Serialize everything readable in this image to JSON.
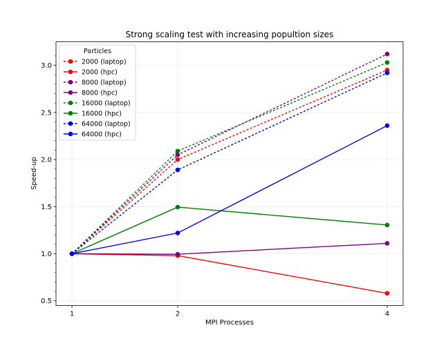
{
  "chart_data": {
    "type": "line",
    "title": "Strong scaling test with increasing popultion sizes",
    "xlabel": "MPI Processes",
    "ylabel": "Speed-up",
    "x": [
      1,
      2,
      4
    ],
    "x_scale": "log2",
    "x_ticks": [
      "1",
      "2",
      "4"
    ],
    "y_ticks": [
      "0.5",
      "1.0",
      "1.5",
      "2.0",
      "2.5",
      "3.0"
    ],
    "ylim": [
      0.45,
      3.25
    ],
    "grid": true,
    "legend_title": "Particles",
    "legend_position": "top-left",
    "series": [
      {
        "name": "2000 (laptop)",
        "values": [
          1.0,
          2.0,
          2.95
        ],
        "color": "#ff0000",
        "style": "dotted"
      },
      {
        "name": "2000 (hpc)",
        "values": [
          1.0,
          0.98,
          0.58
        ],
        "color": "#ff0000",
        "style": "solid"
      },
      {
        "name": "8000 (laptop)",
        "values": [
          1.0,
          2.05,
          3.12
        ],
        "color": "#800080",
        "style": "dotted"
      },
      {
        "name": "8000 (hpc)",
        "values": [
          1.0,
          0.995,
          1.11
        ],
        "color": "#800080",
        "style": "solid"
      },
      {
        "name": "16000 (laptop)",
        "values": [
          1.0,
          2.09,
          3.03
        ],
        "color": "#008000",
        "style": "dotted"
      },
      {
        "name": "16000 (hpc)",
        "values": [
          1.0,
          1.495,
          1.305
        ],
        "color": "#008000",
        "style": "solid"
      },
      {
        "name": "64000 (laptop)",
        "values": [
          1.0,
          1.89,
          2.92
        ],
        "color": "#0000ff",
        "style": "dotted"
      },
      {
        "name": "64000 (hpc)",
        "values": [
          1.0,
          1.22,
          2.36
        ],
        "color": "#0000ff",
        "style": "solid"
      }
    ]
  }
}
